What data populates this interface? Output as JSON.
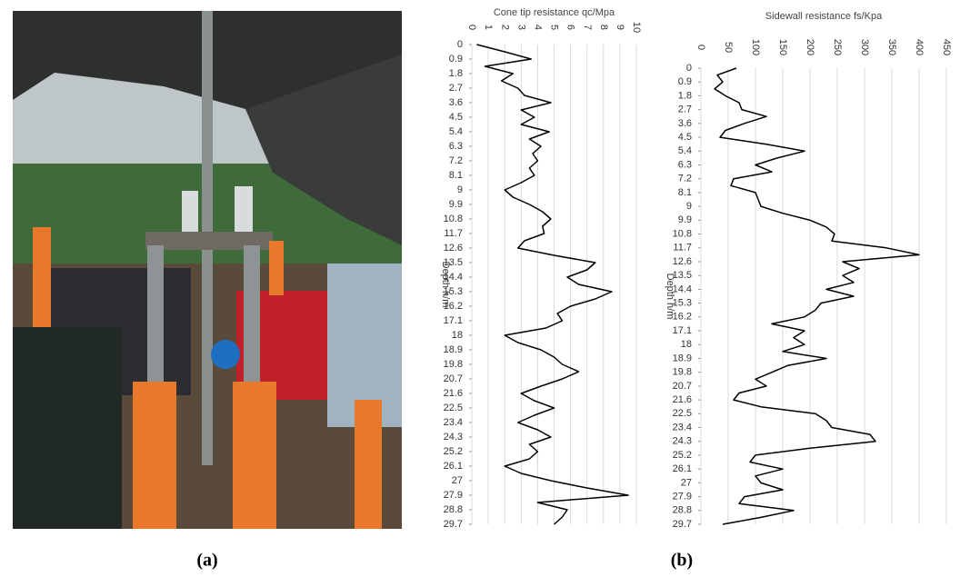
{
  "panels": {
    "a": "(a)",
    "b": "(b)"
  },
  "chart_data": [
    {
      "type": "line",
      "title": "Cone tip resistance   qc/Mpa",
      "y_label": "Depth  h/m",
      "color": "#000000",
      "grid": true,
      "xlim": [
        0,
        10
      ],
      "xticks": [
        0,
        1,
        2,
        3,
        4,
        5,
        6,
        7,
        8,
        9,
        10
      ],
      "ylim": [
        0,
        29.7
      ],
      "yticks": [
        0,
        0.9,
        1.8,
        2.7,
        3.6,
        4.5,
        5.4,
        6.3,
        7.2,
        8.1,
        9,
        9.9,
        10.8,
        11.7,
        12.6,
        13.5,
        14.4,
        15.3,
        16.2,
        17.1,
        18,
        18.9,
        19.8,
        20.7,
        21.6,
        22.5,
        23.4,
        24.3,
        25.2,
        26.1,
        27,
        27.9,
        28.8,
        29.7
      ],
      "y": [
        0,
        0.45,
        0.9,
        1.35,
        1.8,
        2.25,
        2.7,
        3.15,
        3.6,
        4.05,
        4.5,
        4.95,
        5.4,
        5.85,
        6.3,
        6.75,
        7.2,
        7.65,
        8.1,
        8.55,
        9,
        9.45,
        9.9,
        10.35,
        10.8,
        11.25,
        11.7,
        12.15,
        12.6,
        13.05,
        13.5,
        13.95,
        14.4,
        14.85,
        15.3,
        15.75,
        16.2,
        16.65,
        17.1,
        17.55,
        18,
        18.45,
        18.9,
        19.35,
        19.8,
        20.25,
        20.7,
        21.15,
        21.6,
        22.05,
        22.5,
        22.95,
        23.4,
        23.85,
        24.3,
        24.75,
        25.2,
        25.65,
        26.1,
        26.55,
        27,
        27.45,
        27.9,
        28.35,
        28.8,
        29.25,
        29.7
      ],
      "values": [
        0.3,
        2,
        3.6,
        0.8,
        2.5,
        1.8,
        2.8,
        3.2,
        4.8,
        3.0,
        3.8,
        3.0,
        4.7,
        3.5,
        4.2,
        3.7,
        4.0,
        3.5,
        3.8,
        3.0,
        2.0,
        2.5,
        3.5,
        4.3,
        4.8,
        4.3,
        4.4,
        3.2,
        2.8,
        5,
        7.5,
        7.0,
        5.8,
        6.5,
        8.5,
        7.5,
        6.0,
        5.2,
        5.5,
        4.5,
        2.0,
        2.8,
        4.2,
        5.0,
        5.5,
        6.5,
        5.5,
        4.2,
        3.0,
        3.8,
        5.0,
        3.8,
        2.8,
        4.0,
        4.8,
        3.5,
        4.0,
        3.5,
        2.0,
        3.0,
        4.8,
        7.0,
        9.5,
        4.0,
        5.8,
        5.5,
        5.0
      ]
    },
    {
      "type": "line",
      "title": "Sidewall resistance  fs/Kpa",
      "y_label": "Depth  h/m",
      "color": "#000000",
      "grid": true,
      "xlim": [
        0,
        450
      ],
      "xticks": [
        0,
        50,
        100,
        150,
        200,
        250,
        300,
        350,
        400,
        450
      ],
      "ylim": [
        0,
        29.7
      ],
      "yticks": [
        0,
        0.9,
        1.8,
        2.7,
        3.6,
        4.5,
        5.4,
        6.3,
        7.2,
        8.1,
        9,
        9.9,
        10.8,
        11.7,
        12.6,
        13.5,
        14.4,
        15.3,
        16.2,
        17.1,
        18,
        18.9,
        19.8,
        20.7,
        21.6,
        22.5,
        23.4,
        24.3,
        25.2,
        26.1,
        27,
        27.9,
        28.8,
        29.7
      ],
      "y": [
        0,
        0.45,
        0.9,
        1.35,
        1.8,
        2.25,
        2.7,
        3.15,
        3.6,
        4.05,
        4.5,
        4.95,
        5.4,
        5.85,
        6.3,
        6.75,
        7.2,
        7.65,
        8.1,
        8.55,
        9,
        9.45,
        9.9,
        10.35,
        10.8,
        11.25,
        11.7,
        12.15,
        12.6,
        13.05,
        13.5,
        13.95,
        14.4,
        14.85,
        15.3,
        15.75,
        16.2,
        16.65,
        17.1,
        17.55,
        18,
        18.45,
        18.9,
        19.35,
        19.8,
        20.25,
        20.7,
        21.15,
        21.6,
        22.05,
        22.5,
        22.95,
        23.4,
        23.85,
        24.3,
        24.75,
        25.2,
        25.65,
        26.1,
        26.55,
        27,
        27.45,
        27.9,
        28.35,
        28.8,
        29.25,
        29.7
      ],
      "values": [
        65,
        30,
        40,
        25,
        45,
        70,
        75,
        120,
        80,
        45,
        35,
        120,
        190,
        140,
        100,
        130,
        60,
        55,
        100,
        105,
        110,
        150,
        200,
        230,
        245,
        240,
        340,
        400,
        260,
        290,
        260,
        280,
        230,
        280,
        220,
        210,
        190,
        130,
        190,
        170,
        190,
        150,
        230,
        160,
        130,
        100,
        120,
        70,
        60,
        110,
        210,
        230,
        240,
        310,
        320,
        200,
        100,
        90,
        150,
        100,
        110,
        150,
        80,
        70,
        170,
        110,
        40
      ]
    }
  ]
}
